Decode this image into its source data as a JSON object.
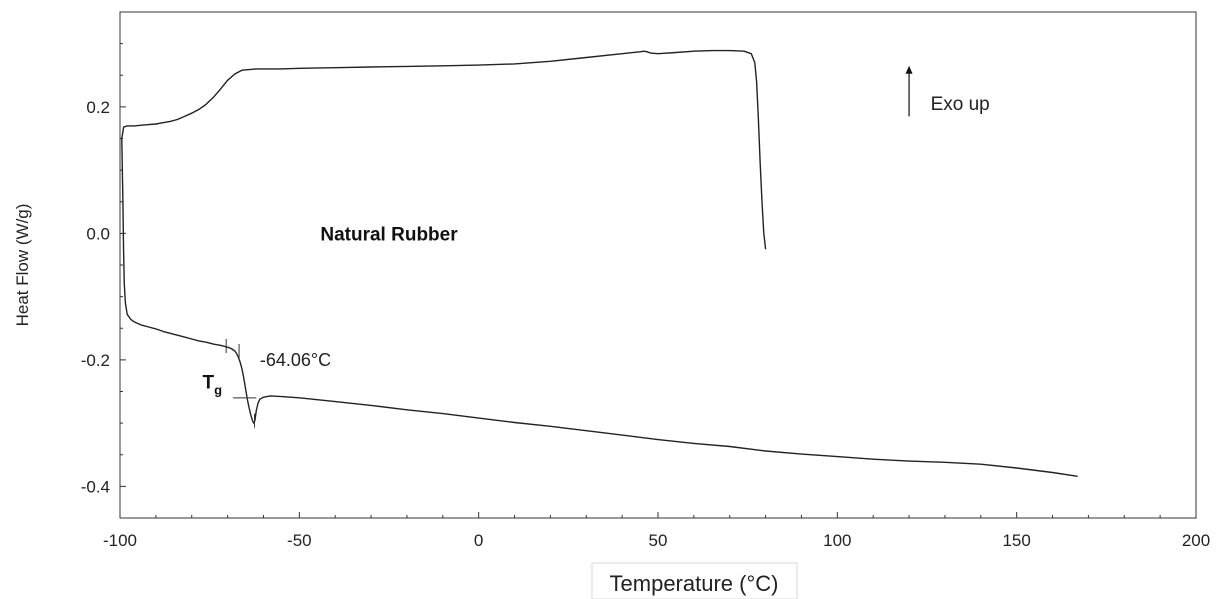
{
  "chart_data": {
    "type": "line",
    "title": "",
    "xlabel": "Temperature (°C)",
    "ylabel": "Heat Flow (W/g)",
    "xlim": [
      -100,
      200
    ],
    "ylim": [
      -0.45,
      0.35
    ],
    "x_ticks": [
      -100,
      -50,
      0,
      50,
      100,
      150,
      200
    ],
    "x_tick_labels": [
      "-100",
      "-50",
      "0",
      "50",
      "100",
      "150",
      "200"
    ],
    "y_ticks": [
      -0.4,
      -0.2,
      0.0,
      0.2
    ],
    "y_tick_labels": [
      "-0.4",
      "-0.2",
      "0.0",
      "0.2"
    ],
    "grid": false,
    "series": [
      {
        "name": "",
        "color": "#222222",
        "x": [
          -99.5,
          -99.2,
          -99.0,
          -98.8,
          -98.5,
          -98,
          -97,
          -96,
          -94,
          -92,
          -90,
          -88,
          -86,
          -84,
          -82,
          -80,
          -78,
          -76,
          -74,
          -72,
          -70,
          -69,
          -68,
          -67.5,
          -67,
          -66.5,
          -66,
          -65.5,
          -65,
          -64.5,
          -64,
          -63.5,
          -63,
          -62.7,
          -62.4,
          -62,
          -61.5,
          -61,
          -60,
          -58,
          -55,
          -50,
          -40,
          -30,
          -20,
          -10,
          0,
          10,
          20,
          30,
          40,
          50,
          60,
          70,
          80,
          90,
          100,
          110,
          120,
          130,
          140,
          150,
          160,
          167
        ],
        "y": [
          0.15,
          0.05,
          -0.03,
          -0.08,
          -0.11,
          -0.128,
          -0.136,
          -0.14,
          -0.145,
          -0.148,
          -0.151,
          -0.155,
          -0.158,
          -0.161,
          -0.164,
          -0.167,
          -0.17,
          -0.172,
          -0.175,
          -0.177,
          -0.18,
          -0.182,
          -0.186,
          -0.19,
          -0.196,
          -0.204,
          -0.214,
          -0.228,
          -0.245,
          -0.262,
          -0.276,
          -0.288,
          -0.297,
          -0.3,
          -0.296,
          -0.28,
          -0.268,
          -0.262,
          -0.259,
          -0.257,
          -0.258,
          -0.26,
          -0.266,
          -0.272,
          -0.279,
          -0.285,
          -0.292,
          -0.299,
          -0.305,
          -0.312,
          -0.319,
          -0.326,
          -0.332,
          -0.337,
          -0.344,
          -0.349,
          -0.353,
          -0.357,
          -0.36,
          -0.362,
          -0.365,
          -0.371,
          -0.378,
          -0.384
        ]
      },
      {
        "name": "",
        "color": "#222222",
        "x": [
          -99.5,
          -99,
          -98,
          -96,
          -94,
          -92,
          -90,
          -88,
          -86,
          -84,
          -82,
          -80,
          -78,
          -76,
          -74,
          -72,
          -70,
          -68,
          -66,
          -64,
          -62,
          -60,
          -55,
          -50,
          -40,
          -30,
          -20,
          -10,
          0,
          10,
          20,
          30,
          40,
          45,
          46,
          47,
          48,
          50,
          55,
          60,
          65,
          70,
          74,
          76,
          77,
          77.5,
          78,
          78.5,
          79,
          79.5,
          80
        ],
        "y": [
          0.15,
          0.168,
          0.17,
          0.17,
          0.171,
          0.172,
          0.173,
          0.175,
          0.177,
          0.18,
          0.185,
          0.19,
          0.196,
          0.204,
          0.215,
          0.228,
          0.242,
          0.252,
          0.258,
          0.259,
          0.26,
          0.26,
          0.26,
          0.261,
          0.262,
          0.263,
          0.264,
          0.265,
          0.266,
          0.268,
          0.272,
          0.278,
          0.284,
          0.287,
          0.288,
          0.287,
          0.285,
          0.284,
          0.286,
          0.288,
          0.289,
          0.289,
          0.288,
          0.284,
          0.27,
          0.24,
          0.18,
          0.11,
          0.05,
          0.0,
          -0.025
        ]
      }
    ],
    "annotations": {
      "sample_label": "Natural Rubber",
      "direction_label": "Exo up",
      "tg_main": "T",
      "tg_sub": "g",
      "tg_value": "-64.06°C"
    },
    "markers": {
      "sample_label_at": [
        -25,
        0.0
      ],
      "direction_arrow_from": [
        120,
        0.185
      ],
      "direction_arrow_to": [
        120,
        0.265
      ],
      "direction_label_at": [
        126,
        0.2
      ],
      "tg_line_from": [
        -68.5,
        -0.26
      ],
      "tg_line_to": [
        -62,
        -0.26
      ],
      "tg_label_at": [
        -77,
        -0.245
      ],
      "tg_value_at": [
        -61,
        -0.21
      ],
      "tg_ticks": [
        [
          -70.4,
          -0.178
        ],
        [
          -66.8,
          -0.186
        ],
        [
          -62.5,
          -0.296
        ]
      ]
    }
  }
}
